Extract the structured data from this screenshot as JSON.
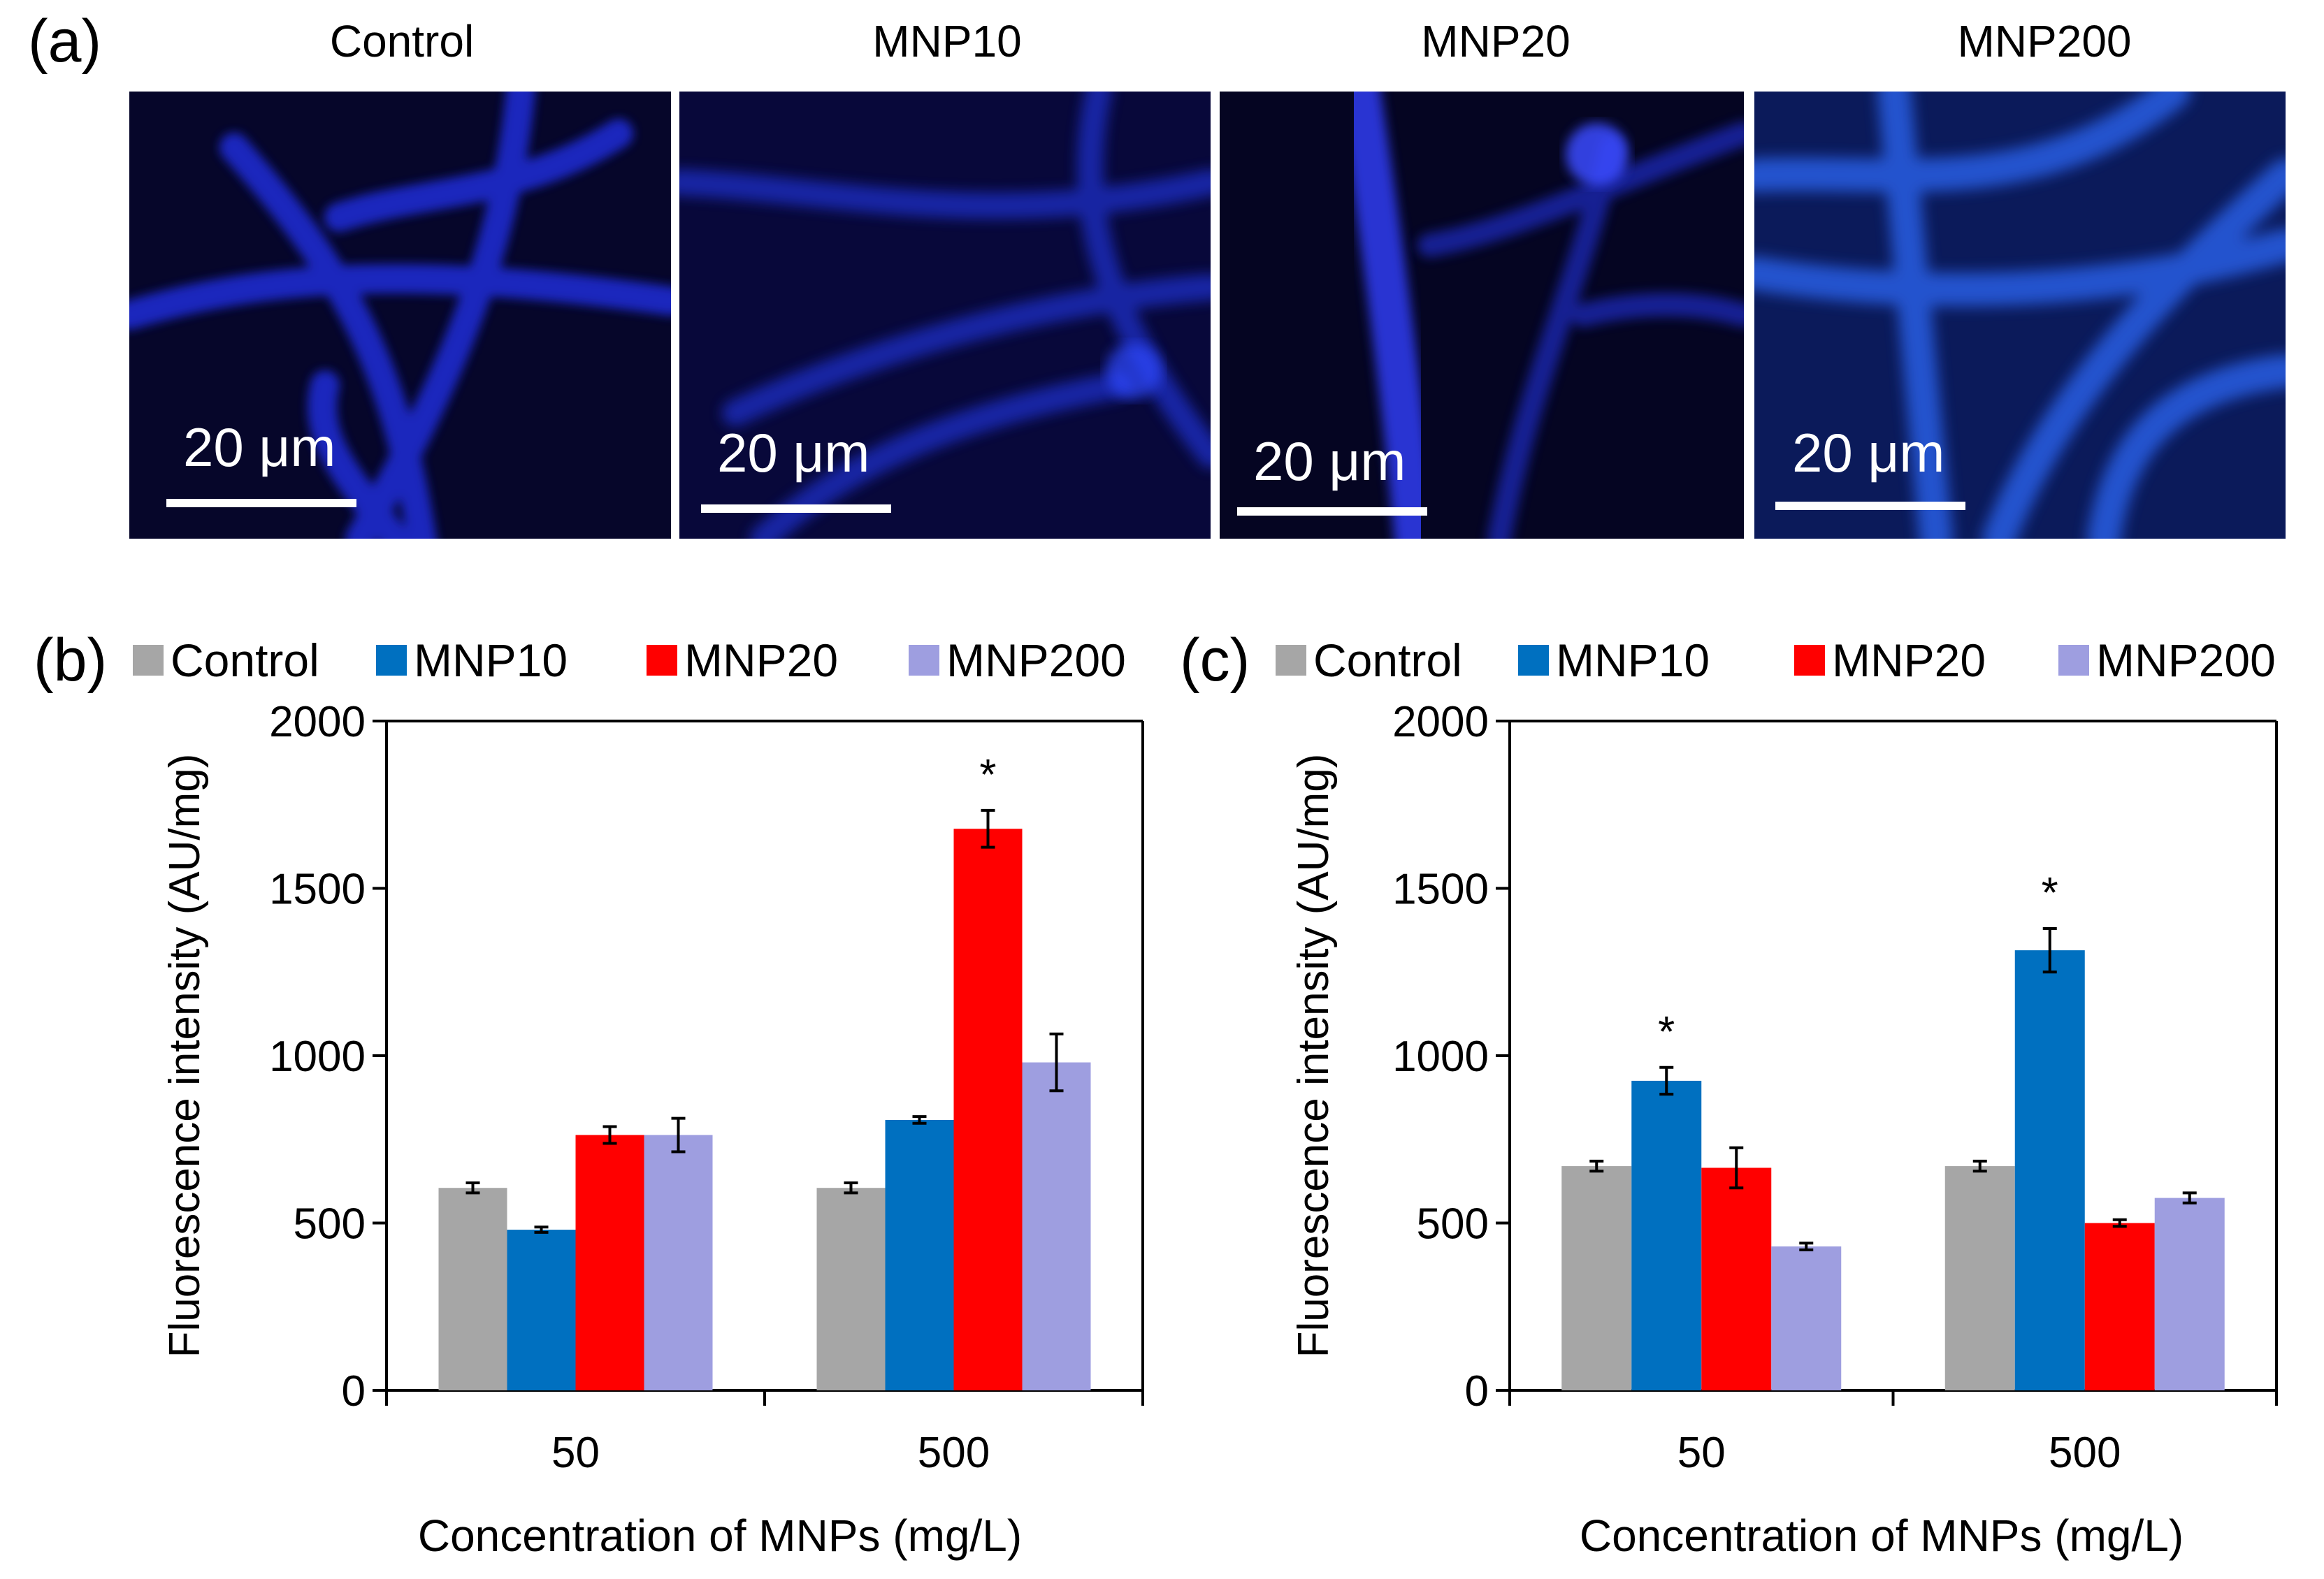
{
  "panel_a": {
    "label": "(a)",
    "titles": [
      "Control",
      "MNP10",
      "MNP20",
      "MNP200"
    ],
    "scale_bar_label": "20 μm"
  },
  "colors": {
    "Control": "#a6a6a6",
    "MNP10": "#0070c0",
    "MNP20": "#ff0000",
    "MNP200": "#9e9ee0",
    "micro_bg": "#06062a",
    "hypha": "#2a3cff"
  },
  "chart_data": [
    {
      "panel_label": "(b)",
      "type": "bar",
      "categories": [
        "50",
        "500"
      ],
      "series": [
        {
          "name": "Control",
          "values": [
            605,
            605
          ],
          "errors": [
            15,
            15
          ]
        },
        {
          "name": "MNP10",
          "values": [
            480,
            808
          ],
          "errors": [
            8,
            10
          ]
        },
        {
          "name": "MNP20",
          "values": [
            763,
            1678
          ],
          "errors": [
            25,
            55
          ]
        },
        {
          "name": "MNP200",
          "values": [
            763,
            980
          ],
          "errors": [
            50,
            85
          ]
        }
      ],
      "significance": [
        {
          "category": "500",
          "series": "MNP20",
          "label": "*"
        }
      ],
      "xlabel": "Concentration of MNPs (mg/L)",
      "ylabel": "Fluorescence intensity (AU/mg)",
      "ylim": [
        0,
        2000
      ],
      "yticks": [
        0,
        500,
        1000,
        1500,
        2000
      ],
      "legend": "top"
    },
    {
      "panel_label": "(c)",
      "type": "bar",
      "categories": [
        "50",
        "500"
      ],
      "series": [
        {
          "name": "Control",
          "values": [
            670,
            670
          ],
          "errors": [
            15,
            15
          ]
        },
        {
          "name": "MNP10",
          "values": [
            925,
            1315
          ],
          "errors": [
            40,
            65
          ]
        },
        {
          "name": "MNP20",
          "values": [
            665,
            500
          ],
          "errors": [
            60,
            10
          ]
        },
        {
          "name": "MNP200",
          "values": [
            430,
            575
          ],
          "errors": [
            10,
            15
          ]
        }
      ],
      "significance": [
        {
          "category": "50",
          "series": "MNP10",
          "label": "*"
        },
        {
          "category": "500",
          "series": "MNP10",
          "label": "*"
        }
      ],
      "xlabel": "Concentration of MNPs (mg/L)",
      "ylabel": "Fluorescence intensity (AU/mg)",
      "ylim": [
        0,
        2000
      ],
      "yticks": [
        0,
        500,
        1000,
        1500,
        2000
      ],
      "legend": "top"
    }
  ]
}
